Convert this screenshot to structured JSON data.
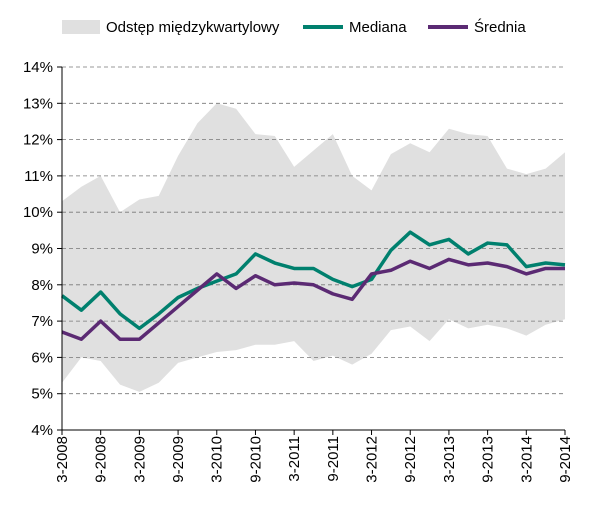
{
  "chart_data": {
    "type": "line",
    "categories": [
      "3-2008",
      null,
      "9-2008",
      null,
      "3-2009",
      null,
      "9-2009",
      null,
      "3-2010",
      null,
      "9-2010",
      null,
      "3-2011",
      null,
      "9-2011",
      null,
      "3-2012",
      null,
      "9-2012",
      null,
      "3-2013",
      null,
      "9-2013",
      null,
      "3-2014",
      null,
      "9-2014"
    ],
    "series": [
      {
        "name": "Odstęp międzykwartylowy",
        "color": "#e0e0e0",
        "upper": [
          10.3,
          10.7,
          11.0,
          10.0,
          10.35,
          10.45,
          11.55,
          12.45,
          13.0,
          12.85,
          12.15,
          12.1,
          11.25,
          11.7,
          12.15,
          11.0,
          10.6,
          11.6,
          11.9,
          11.65,
          12.3,
          12.15,
          12.1,
          11.2,
          11.05,
          11.2,
          11.65
        ],
        "lower": [
          5.3,
          6.0,
          5.9,
          5.25,
          5.05,
          5.3,
          5.85,
          6.0,
          6.15,
          6.2,
          6.35,
          6.35,
          6.45,
          5.9,
          6.05,
          5.8,
          6.1,
          6.75,
          6.85,
          6.45,
          7.05,
          6.8,
          6.9,
          6.8,
          6.6,
          6.9,
          7.05
        ]
      },
      {
        "name": "Mediana",
        "color": "#00806e",
        "values": [
          7.7,
          7.3,
          7.8,
          7.2,
          6.8,
          7.2,
          7.65,
          7.9,
          8.1,
          8.3,
          8.85,
          8.6,
          8.45,
          8.45,
          8.15,
          7.95,
          8.15,
          8.95,
          9.45,
          9.1,
          9.25,
          8.85,
          9.15,
          9.1,
          8.5,
          8.6,
          8.55
        ]
      },
      {
        "name": "Średnia",
        "color": "#5b2a73",
        "values": [
          6.7,
          6.5,
          7.0,
          6.5,
          6.5,
          6.95,
          7.4,
          7.85,
          8.3,
          7.9,
          8.25,
          8.0,
          8.05,
          8.0,
          7.75,
          7.6,
          8.3,
          8.4,
          8.65,
          8.45,
          8.7,
          8.55,
          8.6,
          8.5,
          8.3,
          8.45,
          8.45
        ]
      }
    ],
    "ylim": [
      4,
      14
    ],
    "yticks": [
      {
        "value": 4,
        "label": "4%"
      },
      {
        "value": 5,
        "label": "5%"
      },
      {
        "value": 6,
        "label": "6%"
      },
      {
        "value": 7,
        "label": "7%"
      },
      {
        "value": 8,
        "label": "8%"
      },
      {
        "value": 9,
        "label": "9%"
      },
      {
        "value": 10,
        "label": "10%"
      },
      {
        "value": 11,
        "label": "11%"
      },
      {
        "value": 12,
        "label": "12%"
      },
      {
        "value": 13,
        "label": "13%"
      },
      {
        "value": 14,
        "label": "14%"
      }
    ],
    "grid": true
  }
}
